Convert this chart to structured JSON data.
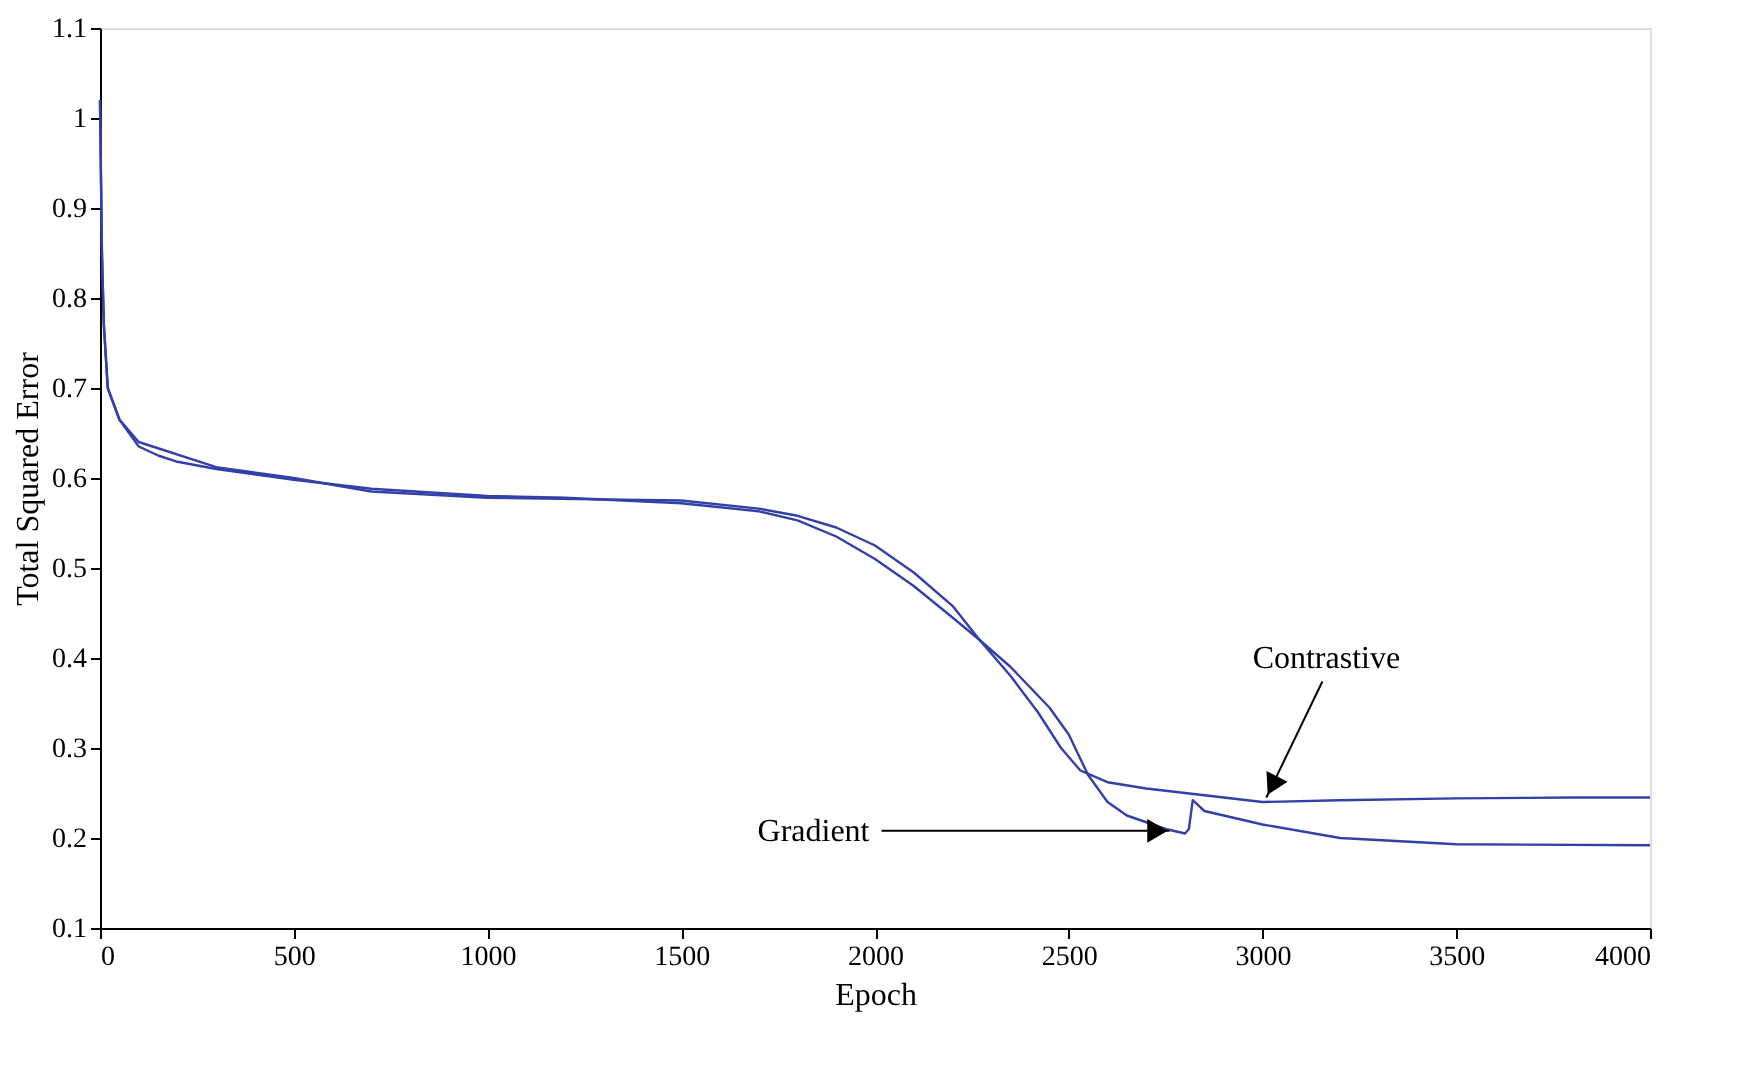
{
  "chart_data": {
    "type": "line",
    "xlabel": "Epoch",
    "ylabel": "Total Squared Error",
    "xlim": [
      0,
      4000
    ],
    "xticks": [
      0,
      500,
      1000,
      1500,
      2000,
      2500,
      3000,
      3500,
      4000
    ],
    "ylim": [
      0.1,
      1.1
    ],
    "yticks": [
      0.1,
      0.2,
      0.3,
      0.4,
      0.5,
      0.6,
      0.7,
      0.8,
      0.9,
      1,
      1.1
    ],
    "grid": false,
    "legend": false,
    "marker": "none",
    "line_style": "solid",
    "series": [
      {
        "color": "#3240a8",
        "x": [
          0,
          5,
          10,
          20,
          50,
          100,
          150,
          200,
          300,
          500,
          700,
          1000,
          1200,
          1500,
          1700,
          1800,
          1900,
          2000,
          2100,
          2200,
          2270,
          2350,
          2420,
          2480,
          2530,
          2600,
          2700,
          2800,
          3000,
          3200,
          3500,
          3800,
          4000
        ],
        "values": [
          1.02,
          0.85,
          0.77,
          0.7,
          0.665,
          0.635,
          0.625,
          0.618,
          0.61,
          0.598,
          0.588,
          0.58,
          0.578,
          0.572,
          0.563,
          0.553,
          0.535,
          0.51,
          0.48,
          0.445,
          0.42,
          0.38,
          0.34,
          0.3,
          0.275,
          0.262,
          0.255,
          0.25,
          0.24,
          0.242,
          0.244,
          0.245,
          0.245
        ]
      },
      {
        "color": "#3240a8",
        "x": [
          0,
          5,
          10,
          20,
          50,
          100,
          300,
          500,
          700,
          1000,
          1500,
          1700,
          1800,
          1900,
          2000,
          2100,
          2200,
          2270,
          2350,
          2450,
          2500,
          2550,
          2600,
          2650,
          2750,
          2800,
          2810,
          2820,
          2850,
          3000,
          3200,
          3500,
          4000
        ],
        "values": [
          1.02,
          0.85,
          0.77,
          0.7,
          0.665,
          0.64,
          0.612,
          0.6,
          0.585,
          0.578,
          0.575,
          0.566,
          0.558,
          0.545,
          0.525,
          0.495,
          0.458,
          0.42,
          0.39,
          0.345,
          0.315,
          0.27,
          0.24,
          0.225,
          0.21,
          0.205,
          0.21,
          0.242,
          0.23,
          0.215,
          0.2,
          0.193,
          0.192
        ]
      }
    ],
    "annotations": [
      {
        "text": "Gradient",
        "x": 2760,
        "y": 0.208
      },
      {
        "text": "Contrastive",
        "x": 3010,
        "y": 0.245
      }
    ]
  }
}
